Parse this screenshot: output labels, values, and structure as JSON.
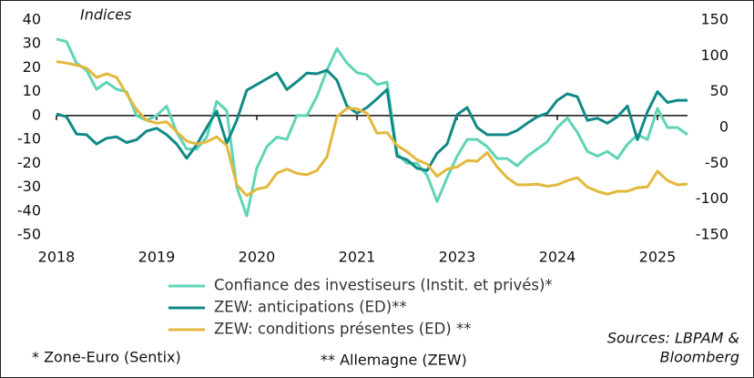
{
  "chart_data": {
    "type": "line",
    "ylabel": "Indices",
    "x": [
      0.0,
      0.1,
      0.2,
      0.3,
      0.4,
      0.5,
      0.6,
      0.7,
      0.8,
      0.9,
      1.0,
      1.1,
      1.2,
      1.3,
      1.4,
      1.5,
      1.6,
      1.7,
      1.8,
      1.9,
      2.0,
      2.1,
      2.2,
      2.3,
      2.4,
      2.5,
      2.6,
      2.7,
      2.8,
      2.9,
      3.0,
      3.1,
      3.2,
      3.3,
      3.4,
      3.5,
      3.6,
      3.7,
      3.8,
      3.9,
      4.0,
      4.1,
      4.2,
      4.3,
      4.4,
      4.5,
      4.6,
      4.7,
      4.8,
      4.9,
      5.0,
      5.1,
      5.2,
      5.3,
      5.4,
      5.5,
      5.6,
      5.7,
      5.8,
      5.9,
      6.0,
      6.1,
      6.2,
      6.3
    ],
    "xlim": [
      0,
      6.3
    ],
    "xticks": [
      {
        "value": 0,
        "label": "2018"
      },
      {
        "value": 1,
        "label": "2019"
      },
      {
        "value": 2,
        "label": "2020"
      },
      {
        "value": 3,
        "label": "2021"
      },
      {
        "value": 4,
        "label": "2023"
      },
      {
        "value": 5,
        "label": "2024"
      },
      {
        "value": 6,
        "label": "2025"
      }
    ],
    "ylim": [
      -50,
      40
    ],
    "yticks": [
      -50,
      -40,
      -30,
      -20,
      -10,
      0,
      10,
      20,
      30,
      40
    ],
    "y2lim": [
      -150,
      150
    ],
    "y2ticks": [
      -150,
      -100,
      -50,
      0,
      50,
      100,
      150
    ],
    "series": [
      {
        "name": "Confiance des investiseurs (Instit. et privés)*",
        "color": "#5fd4b6",
        "axis": "y",
        "values": [
          32,
          31,
          22,
          19,
          11,
          14,
          11,
          10,
          0,
          -2,
          0,
          4,
          -7,
          -14,
          -14,
          -9,
          6,
          2,
          -30,
          -42,
          -22,
          -13,
          -9,
          -10,
          0,
          0,
          8,
          19,
          28,
          22,
          18,
          17,
          13,
          14,
          -16,
          -20,
          -20,
          -25,
          -36,
          -26,
          -17,
          -10,
          -10,
          -13,
          -18,
          -18,
          -21,
          -17,
          -14,
          -11,
          -5,
          -1,
          -7,
          -15,
          -17,
          -15,
          -18,
          -12,
          -8,
          -10,
          3,
          -5,
          -5,
          -8
        ]
      },
      {
        "name": "ZEW: anticipations (ED)**",
        "color": "#108a86",
        "axis": "y2",
        "values": [
          19,
          15,
          -9,
          -10,
          -23,
          -15,
          -13,
          -21,
          -17,
          -5,
          -1,
          -10,
          -23,
          -43,
          -24,
          0,
          23,
          -22,
          10,
          52,
          60,
          68,
          76,
          53,
          64,
          76,
          75,
          80,
          66,
          30,
          20,
          28,
          40,
          53,
          -40,
          -45,
          -57,
          -60,
          -36,
          -23,
          18,
          28,
          0,
          -10,
          -10,
          -10,
          -4,
          6,
          15,
          20,
          38,
          47,
          43,
          10,
          13,
          6,
          15,
          30,
          -17,
          22,
          50,
          35,
          38,
          38
        ]
      },
      {
        "name": "ZEW: conditions présentes (ED) **",
        "color": "#e3b83c",
        "axis": "y2",
        "values": [
          92,
          90,
          87,
          83,
          70,
          75,
          70,
          47,
          25,
          10,
          6,
          8,
          -6,
          -19,
          -23,
          -20,
          -13,
          -25,
          -80,
          -95,
          -86,
          -83,
          -64,
          -58,
          -64,
          -66,
          -60,
          -41,
          15,
          27,
          26,
          20,
          -8,
          -7,
          -25,
          -34,
          -45,
          -51,
          -68,
          -58,
          -55,
          -46,
          -47,
          -35,
          -55,
          -70,
          -80,
          -80,
          -79,
          -82,
          -80,
          -74,
          -70,
          -83,
          -89,
          -93,
          -89,
          -89,
          -84,
          -83,
          -61,
          -74,
          -80,
          -79
        ]
      }
    ],
    "footnotes": [
      "* Zone-Euro (Sentix)",
      "** Allemagne (ZEW)"
    ],
    "source": [
      "Sources: LBPAM &",
      "Bloomberg"
    ]
  }
}
